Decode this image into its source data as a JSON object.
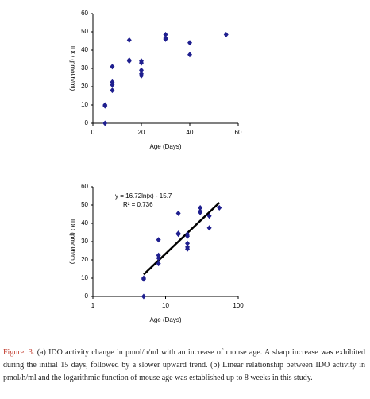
{
  "chart_data": [
    {
      "type": "scatter",
      "xlabel": "Age (Days)",
      "ylabel": "IDO (pmol/h/ml)",
      "x": [
        5,
        5,
        5,
        8,
        8,
        8,
        8,
        15,
        15,
        15,
        20,
        20,
        20,
        20,
        20,
        30,
        30,
        30,
        40,
        40,
        55
      ],
      "values": [
        10,
        9.5,
        0,
        18,
        21,
        22.5,
        31,
        45.5,
        34,
        34.5,
        34,
        33,
        29,
        27,
        26,
        48.5,
        46.5,
        46,
        44,
        37.5,
        48.5
      ],
      "color": "#1f1f8f",
      "xlim": [
        0,
        60
      ],
      "xticks": [
        0,
        20,
        40,
        60
      ],
      "ylim": [
        0,
        60
      ],
      "yticks": [
        0,
        10,
        20,
        30,
        40,
        50,
        60
      ]
    },
    {
      "type": "scatter",
      "xlabel": "Age (Days)",
      "ylabel": "IDO (pmol/h/ml)",
      "x": [
        5,
        5,
        5,
        8,
        8,
        8,
        8,
        15,
        15,
        15,
        20,
        20,
        20,
        20,
        20,
        30,
        30,
        30,
        40,
        40,
        55
      ],
      "values": [
        10,
        9.5,
        0,
        18,
        21,
        22.5,
        31,
        45.5,
        34,
        34.5,
        34,
        33,
        29,
        27,
        26,
        48.5,
        46.5,
        46,
        44,
        37.5,
        48.5
      ],
      "color": "#1f1f8f",
      "xscale": "log",
      "xlim": [
        1,
        100
      ],
      "xticks": [
        1,
        10,
        100
      ],
      "ylim": [
        0,
        60
      ],
      "yticks": [
        0,
        10,
        20,
        30,
        40,
        50,
        60
      ],
      "trendline": {
        "equation": "y = 16.72ln(x) - 15.7",
        "r2": "R² = 0.736"
      }
    }
  ],
  "caption": {
    "label": "Figure. 3.",
    "text": "(a) IDO activity change in pmol/h/ml with an increase of mouse age. A sharp increase was exhibited during the initial 15 days, followed by a slower upward trend. (b) Linear relationship between IDO activity in pmol/h/ml and the logarithmic function of mouse age was established up to 8 weeks in this study."
  }
}
